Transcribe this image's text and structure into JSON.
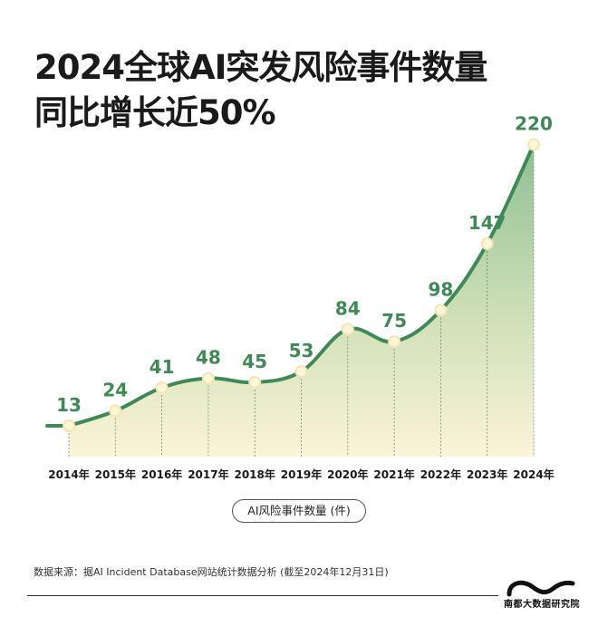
{
  "title": {
    "line1": "2024全球AI突发风险事件数量",
    "line2": "同比增长近50%"
  },
  "chart_data": {
    "type": "area",
    "categories": [
      "2014年",
      "2015年",
      "2016年",
      "2017年",
      "2018年",
      "2019年",
      "2020年",
      "2021年",
      "2022年",
      "2023年",
      "2024年"
    ],
    "values": [
      13,
      24,
      41,
      48,
      45,
      53,
      84,
      75,
      98,
      147,
      220
    ],
    "series_name": "AI风险事件数量 (件)",
    "legend_position": "bottom-center",
    "colors": {
      "line": "#3e8a56",
      "fill_top": "#8fbf93",
      "fill_bottom": "#fbf4d8",
      "label": "#3e8a56",
      "marker": "#fdf6d9"
    }
  },
  "legend": {
    "label": "AI风险事件数量 (件)"
  },
  "source": "数据来源：据AI Incident Database网站统计数据分析 (截至2024年12月31日)",
  "brand": {
    "name": "南都大数据研究院"
  }
}
